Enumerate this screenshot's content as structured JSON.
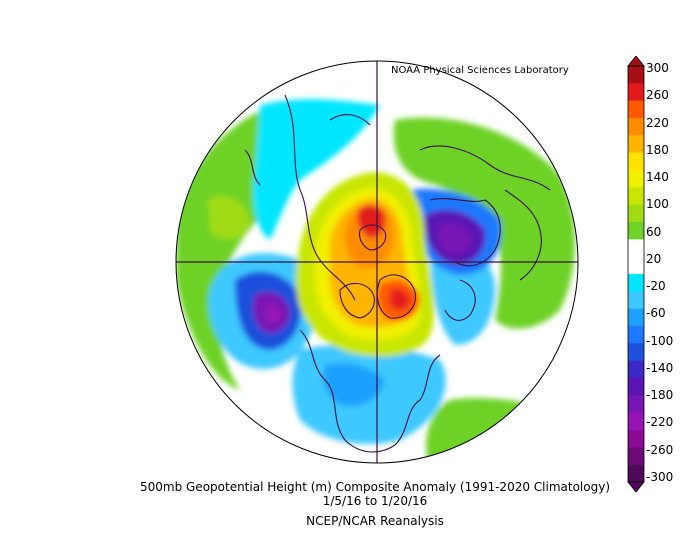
{
  "credit": "NOAA Physical Sciences Laboratory",
  "title": "500mb Geopotential Height (m) Composite Anomaly (1991-2020 Climatology)",
  "dates": "1/5/16   to 1/20/16",
  "source": "NCEP/NCAR Reanalysis",
  "colorbar": {
    "ticks": [
      "300",
      "260",
      "220",
      "180",
      "140",
      "100",
      "60",
      "20",
      "-20",
      "-60",
      "-100",
      "-140",
      "-180",
      "-220",
      "-260",
      "-300"
    ],
    "colors": [
      "#a50f15",
      "#e31a1c",
      "#ff5a00",
      "#ff8c00",
      "#ffb400",
      "#ffe100",
      "#f0f000",
      "#c8e600",
      "#a0dc14",
      "#6ed228",
      "#ffffff",
      "#ffffff",
      "#00e6ff",
      "#3cc8ff",
      "#1ea0ff",
      "#1e78ff",
      "#1e50dc",
      "#3c28c8",
      "#5a14b4",
      "#7814b4",
      "#9614b4",
      "#8c0a96",
      "#6e0a78",
      "#50085a"
    ]
  }
}
